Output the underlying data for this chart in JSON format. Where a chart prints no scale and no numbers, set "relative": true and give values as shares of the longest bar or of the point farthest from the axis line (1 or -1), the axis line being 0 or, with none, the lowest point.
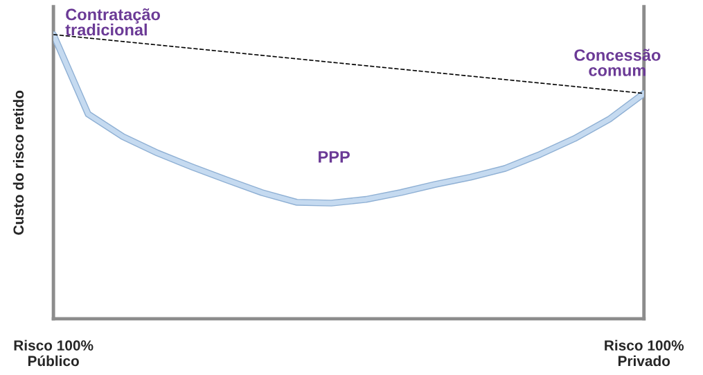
{
  "chart_data": {
    "type": "line",
    "relative": true,
    "ylabel": "Custo do risco retido",
    "categories": [
      "Risco 100%\nPúblico",
      null,
      null,
      null,
      null,
      null,
      null,
      null,
      null,
      null,
      null,
      null,
      null,
      null,
      null,
      null,
      null,
      "Risco 100%\nPrivado"
    ],
    "series": [
      {
        "color": "#c5daf0",
        "line_style": "solid",
        "values": [
          1.0,
          0.72,
          0.641,
          0.583,
          0.534,
          0.488,
          0.444,
          0.41,
          0.407,
          0.42,
          0.444,
          0.473,
          0.498,
          0.529,
          0.578,
          0.634,
          0.702,
          0.793
        ]
      },
      {
        "color": "#000000",
        "line_style": "dashed",
        "values": [
          1.0,
          null,
          null,
          null,
          null,
          null,
          null,
          null,
          null,
          null,
          null,
          null,
          null,
          null,
          null,
          null,
          null,
          0.793
        ]
      }
    ],
    "annotations": [
      "Contratação\ntradicional",
      "PPP",
      "Concessão\ncomum"
    ],
    "grid": false,
    "legend": false
  }
}
